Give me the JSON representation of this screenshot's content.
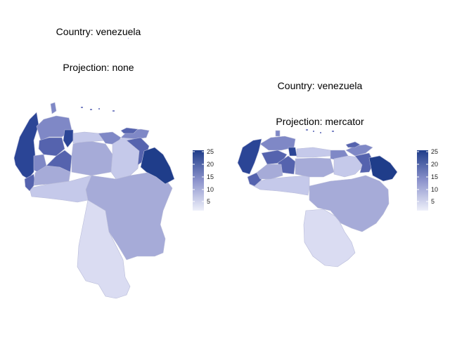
{
  "maps": [
    {
      "country_line": "Country: venezuela",
      "projection_line": "Projection: none"
    },
    {
      "country_line": "Country: venezuela",
      "projection_line": "Projection: mercator"
    }
  ],
  "legend": {
    "ticks": [
      "25",
      "20",
      "15",
      "10",
      "5"
    ],
    "min": 1,
    "max": 26,
    "low_color": "#e8e9f7",
    "high_color": "#1f3d8a"
  },
  "colors": {
    "region_1": "#dadcf2",
    "region_5": "#c5c9ea",
    "region_10": "#a6abd8",
    "region_15": "#7f88c6",
    "region_20": "#5563ae",
    "region_25": "#2b4596"
  }
}
